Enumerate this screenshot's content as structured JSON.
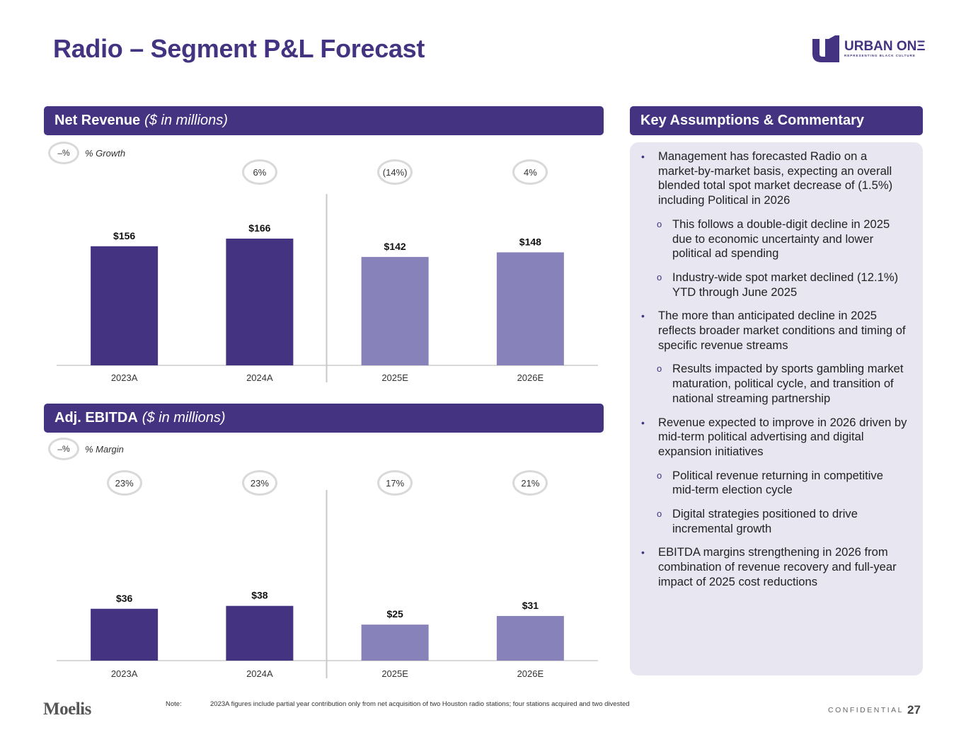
{
  "page": {
    "title": "Radio – Segment P&L Forecast",
    "page_number": "27",
    "confidential": "CONFIDENTIAL"
  },
  "logo": {
    "icon": "urban-one-u1-icon",
    "name": "URBAN ONΞ",
    "tagline": "REPRESENTING BLACK CULTURE",
    "color": "#433380"
  },
  "colors": {
    "primary": "#433380",
    "actual_bar": "#433380",
    "estimate_bar": "#8882ba",
    "panel_bg": "#e7e6f1",
    "axis": "#d9d9d9",
    "pill_border": "#d9d9d9"
  },
  "revenue_section": {
    "title_bold": "Net Revenue",
    "title_italic": "($ in millions)",
    "legend_pill": "–%",
    "legend_label": "% Growth"
  },
  "ebitda_section": {
    "title_bold": "Adj. EBITDA",
    "title_italic": "($ in millions)",
    "legend_pill": "–%",
    "legend_label": "% Margin"
  },
  "commentary": {
    "title": "Key Assumptions & Commentary",
    "bullets": [
      {
        "level": 1,
        "marker": "•",
        "text": "Management has forecasted Radio on a market-by-market basis, expecting an overall blended total spot market decrease of (1.5%) including Political in 2026"
      },
      {
        "level": 2,
        "marker": "o",
        "text": "This follows a double-digit decline in 2025 due to economic uncertainty and lower political ad spending"
      },
      {
        "level": 2,
        "marker": "o",
        "text": "Industry-wide spot market declined (12.1%) YTD through June 2025"
      },
      {
        "level": 1,
        "marker": "•",
        "text": "The more than anticipated decline in 2025 reflects broader market conditions and timing of specific revenue streams"
      },
      {
        "level": 2,
        "marker": "o",
        "text": "Results impacted by sports gambling market maturation, political cycle, and transition of national streaming partnership"
      },
      {
        "level": 1,
        "marker": "•",
        "text": "Revenue expected to improve in 2026 driven by mid-term political advertising and digital expansion initiatives"
      },
      {
        "level": 2,
        "marker": "o",
        "text": "Political revenue returning in competitive mid-term election cycle"
      },
      {
        "level": 2,
        "marker": "o",
        "text": "Digital strategies positioned to drive incremental growth"
      },
      {
        "level": 1,
        "marker": "•",
        "text": "EBITDA margins strengthening in 2026 from combination of revenue recovery and full-year impact of 2025 cost reductions"
      }
    ]
  },
  "footer": {
    "brand": "Moelis",
    "note_label": "Note:",
    "note_text": "2023A figures include partial year contribution only from net acquisition of two Houston radio stations; four stations acquired and two divested"
  },
  "chart_data": [
    {
      "type": "bar",
      "title": "Net Revenue ($ in millions)",
      "xlabel": "",
      "ylabel": "",
      "categories": [
        "2023A",
        "2024A",
        "2025E",
        "2026E"
      ],
      "values": [
        156,
        166,
        142,
        148
      ],
      "value_labels": [
        "$156",
        "$166",
        "$142",
        "$148"
      ],
      "bar_kind": [
        "actual",
        "actual",
        "estimate",
        "estimate"
      ],
      "annotation_label": "% Growth",
      "annotations": [
        null,
        "6%",
        "(14%)",
        "4%"
      ],
      "divider_after_index": 1,
      "ylim": [
        0,
        166
      ],
      "grid": false,
      "legend": "top-left"
    },
    {
      "type": "bar",
      "title": "Adj. EBITDA ($ in millions)",
      "xlabel": "",
      "ylabel": "",
      "categories": [
        "2023A",
        "2024A",
        "2025E",
        "2026E"
      ],
      "values": [
        36,
        38,
        25,
        31
      ],
      "value_labels": [
        "$36",
        "$38",
        "$25",
        "$31"
      ],
      "bar_kind": [
        "actual",
        "actual",
        "estimate",
        "estimate"
      ],
      "annotation_label": "% Margin",
      "annotations": [
        "23%",
        "23%",
        "17%",
        "21%"
      ],
      "divider_after_index": 1,
      "ylim": [
        0,
        118
      ],
      "grid": false,
      "legend": "top-left"
    }
  ]
}
